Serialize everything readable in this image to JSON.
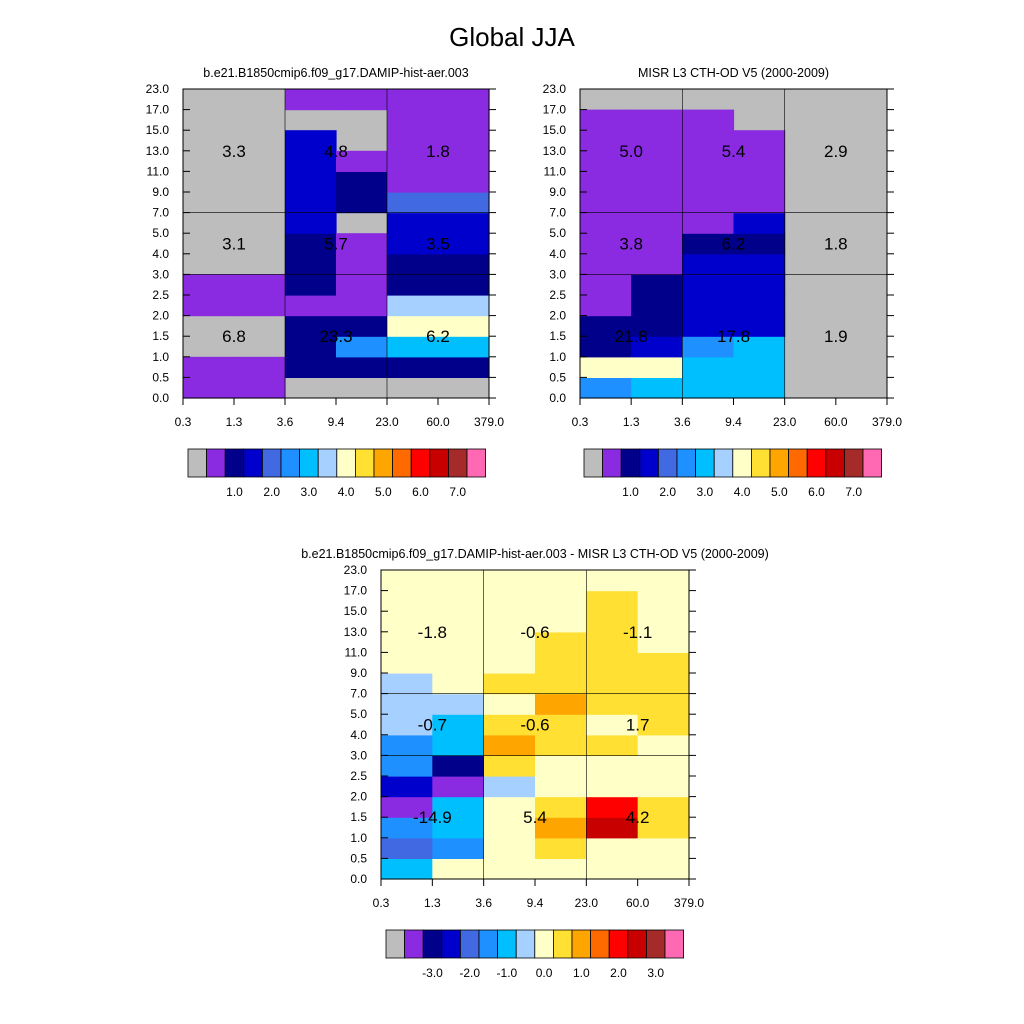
{
  "figure": {
    "title": "Global JJA"
  },
  "chart_data": [
    {
      "type": "heatmap",
      "title": "b.e21.B1850cmip6.f09_g17.DAMIP-hist-aer.003",
      "x_tick_labels": [
        "0.3",
        "1.3",
        "3.6",
        "9.4",
        "23.0",
        "60.0",
        "379.0"
      ],
      "y_tick_labels": [
        "0.0",
        "0.5",
        "1.0",
        "1.5",
        "2.0",
        "2.5",
        "3.0",
        "4.0",
        "5.0",
        "7.0",
        "9.0",
        "11.0",
        "13.0",
        "15.0",
        "17.0",
        "23.0"
      ],
      "cell_level_index_rows_bottom_to_top": [
        [
          1,
          1,
          0,
          0,
          1,
          1,
          0,
          0,
          0,
          0,
          0,
          0,
          0,
          0,
          0
        ],
        [
          1,
          1,
          0,
          0,
          1,
          1,
          0,
          0,
          0,
          0,
          0,
          0,
          0,
          0,
          0
        ],
        [
          0,
          2,
          2,
          2,
          1,
          2,
          2,
          2,
          3,
          3,
          3,
          3,
          3,
          0,
          1
        ],
        [
          0,
          2,
          5,
          2,
          1,
          1,
          1,
          1,
          0,
          2,
          2,
          1,
          0,
          0,
          1
        ],
        [
          0,
          2,
          6,
          8,
          7,
          2,
          2,
          3,
          3,
          4,
          1,
          1,
          1,
          1,
          1
        ],
        [
          0,
          2,
          6,
          8,
          7,
          2,
          2,
          3,
          3,
          4,
          1,
          1,
          1,
          1,
          1
        ]
      ],
      "levels": [
        "1.0",
        "2.0",
        "3.0",
        "4.0",
        "5.0",
        "6.0",
        "7.0"
      ],
      "colorbar_labels": [
        "1.0",
        "2.0",
        "3.0",
        "4.0",
        "5.0",
        "6.0",
        "7.0"
      ],
      "block_values": [
        [
          "6.8",
          "23.3",
          "6.2"
        ],
        [
          "3.1",
          "5.7",
          "3.5"
        ],
        [
          "3.3",
          "4.8",
          "1.8"
        ]
      ]
    },
    {
      "type": "heatmap",
      "title": "MISR L3 CTH-OD V5 (2000-2009)",
      "x_tick_labels": [
        "0.3",
        "1.3",
        "3.6",
        "9.4",
        "23.0",
        "60.0",
        "379.0"
      ],
      "y_tick_labels": [
        "0.0",
        "0.5",
        "1.0",
        "1.5",
        "2.0",
        "2.5",
        "3.0",
        "4.0",
        "5.0",
        "7.0",
        "9.0",
        "11.0",
        "13.0",
        "15.0",
        "17.0",
        "23.0"
      ],
      "cell_level_index_rows_bottom_to_top": [
        [
          5,
          8,
          2,
          2,
          1,
          1,
          1,
          1,
          1,
          1,
          1,
          1,
          1,
          1,
          0
        ],
        [
          6,
          8,
          3,
          2,
          2,
          2,
          1,
          1,
          1,
          1,
          1,
          1,
          1,
          1,
          0
        ],
        [
          6,
          6,
          5,
          3,
          3,
          3,
          3,
          2,
          1,
          1,
          1,
          1,
          1,
          1,
          0
        ],
        [
          6,
          6,
          6,
          3,
          3,
          3,
          3,
          2,
          3,
          1,
          1,
          1,
          1,
          0,
          0
        ],
        [
          0,
          0,
          0,
          0,
          0,
          0,
          0,
          0,
          0,
          0,
          0,
          0,
          0,
          0,
          0
        ],
        [
          0,
          0,
          0,
          0,
          0,
          0,
          0,
          0,
          0,
          0,
          0,
          0,
          0,
          0,
          0
        ]
      ],
      "levels": [
        "1.0",
        "2.0",
        "3.0",
        "4.0",
        "5.0",
        "6.0",
        "7.0"
      ],
      "colorbar_labels": [
        "1.0",
        "2.0",
        "3.0",
        "4.0",
        "5.0",
        "6.0",
        "7.0"
      ],
      "block_values": [
        [
          "21.8",
          "17.8",
          "1.9"
        ],
        [
          "3.8",
          "6.2",
          "1.8"
        ],
        [
          "5.0",
          "5.4",
          "2.9"
        ]
      ]
    },
    {
      "type": "heatmap",
      "title": "b.e21.B1850cmip6.f09_g17.DAMIP-hist-aer.003 - MISR L3 CTH-OD V5 (2000-2009)",
      "x_tick_labels": [
        "0.3",
        "1.3",
        "3.6",
        "9.4",
        "23.0",
        "60.0",
        "379.0"
      ],
      "y_tick_labels": [
        "0.0",
        "0.5",
        "1.0",
        "1.5",
        "2.0",
        "2.5",
        "3.0",
        "4.0",
        "5.0",
        "7.0",
        "9.0",
        "11.0",
        "13.0",
        "15.0",
        "17.0",
        "23.0"
      ],
      "cell_level_index_rows_bottom_to_top": [
        [
          6,
          4,
          5,
          1,
          3,
          5,
          5,
          7,
          7,
          7,
          8,
          8,
          8,
          8,
          8
        ],
        [
          8,
          5,
          6,
          6,
          1,
          2,
          6,
          6,
          7,
          8,
          8,
          8,
          8,
          8,
          8
        ],
        [
          8,
          8,
          8,
          8,
          7,
          9,
          10,
          9,
          8,
          9,
          8,
          8,
          8,
          8,
          8
        ],
        [
          8,
          9,
          10,
          9,
          8,
          8,
          9,
          9,
          10,
          9,
          9,
          9,
          8,
          8,
          8
        ],
        [
          8,
          8,
          13,
          12,
          8,
          8,
          9,
          8,
          9,
          9,
          9,
          9,
          9,
          9,
          8
        ],
        [
          8,
          8,
          9,
          9,
          8,
          8,
          8,
          9,
          9,
          9,
          9,
          8,
          8,
          8,
          8
        ]
      ],
      "levels": [
        "-3.0",
        "-2.0",
        "-1.0",
        "0.0",
        "1.0",
        "2.0",
        "3.0"
      ],
      "colorbar_labels": [
        "-3.0",
        "-2.0",
        "-1.0",
        "0.0",
        "1.0",
        "2.0",
        "3.0"
      ],
      "block_values": [
        [
          "-14.9",
          "5.4",
          "4.2"
        ],
        [
          "-0.7",
          "-0.6",
          "1.7"
        ],
        [
          "-1.8",
          "-0.6",
          "-1.1"
        ]
      ]
    }
  ],
  "colors": {
    "palette": [
      "#bdbdbd",
      "#8a2be2",
      "#00008b",
      "#0000cd",
      "#4169e1",
      "#1e90ff",
      "#00bfff",
      "#a6d0ff",
      "#ffffc8",
      "#ffe033",
      "#ffa500",
      "#ff6a00",
      "#ff0000",
      "#c80000",
      "#a52a2a",
      "#ff69b4"
    ]
  }
}
